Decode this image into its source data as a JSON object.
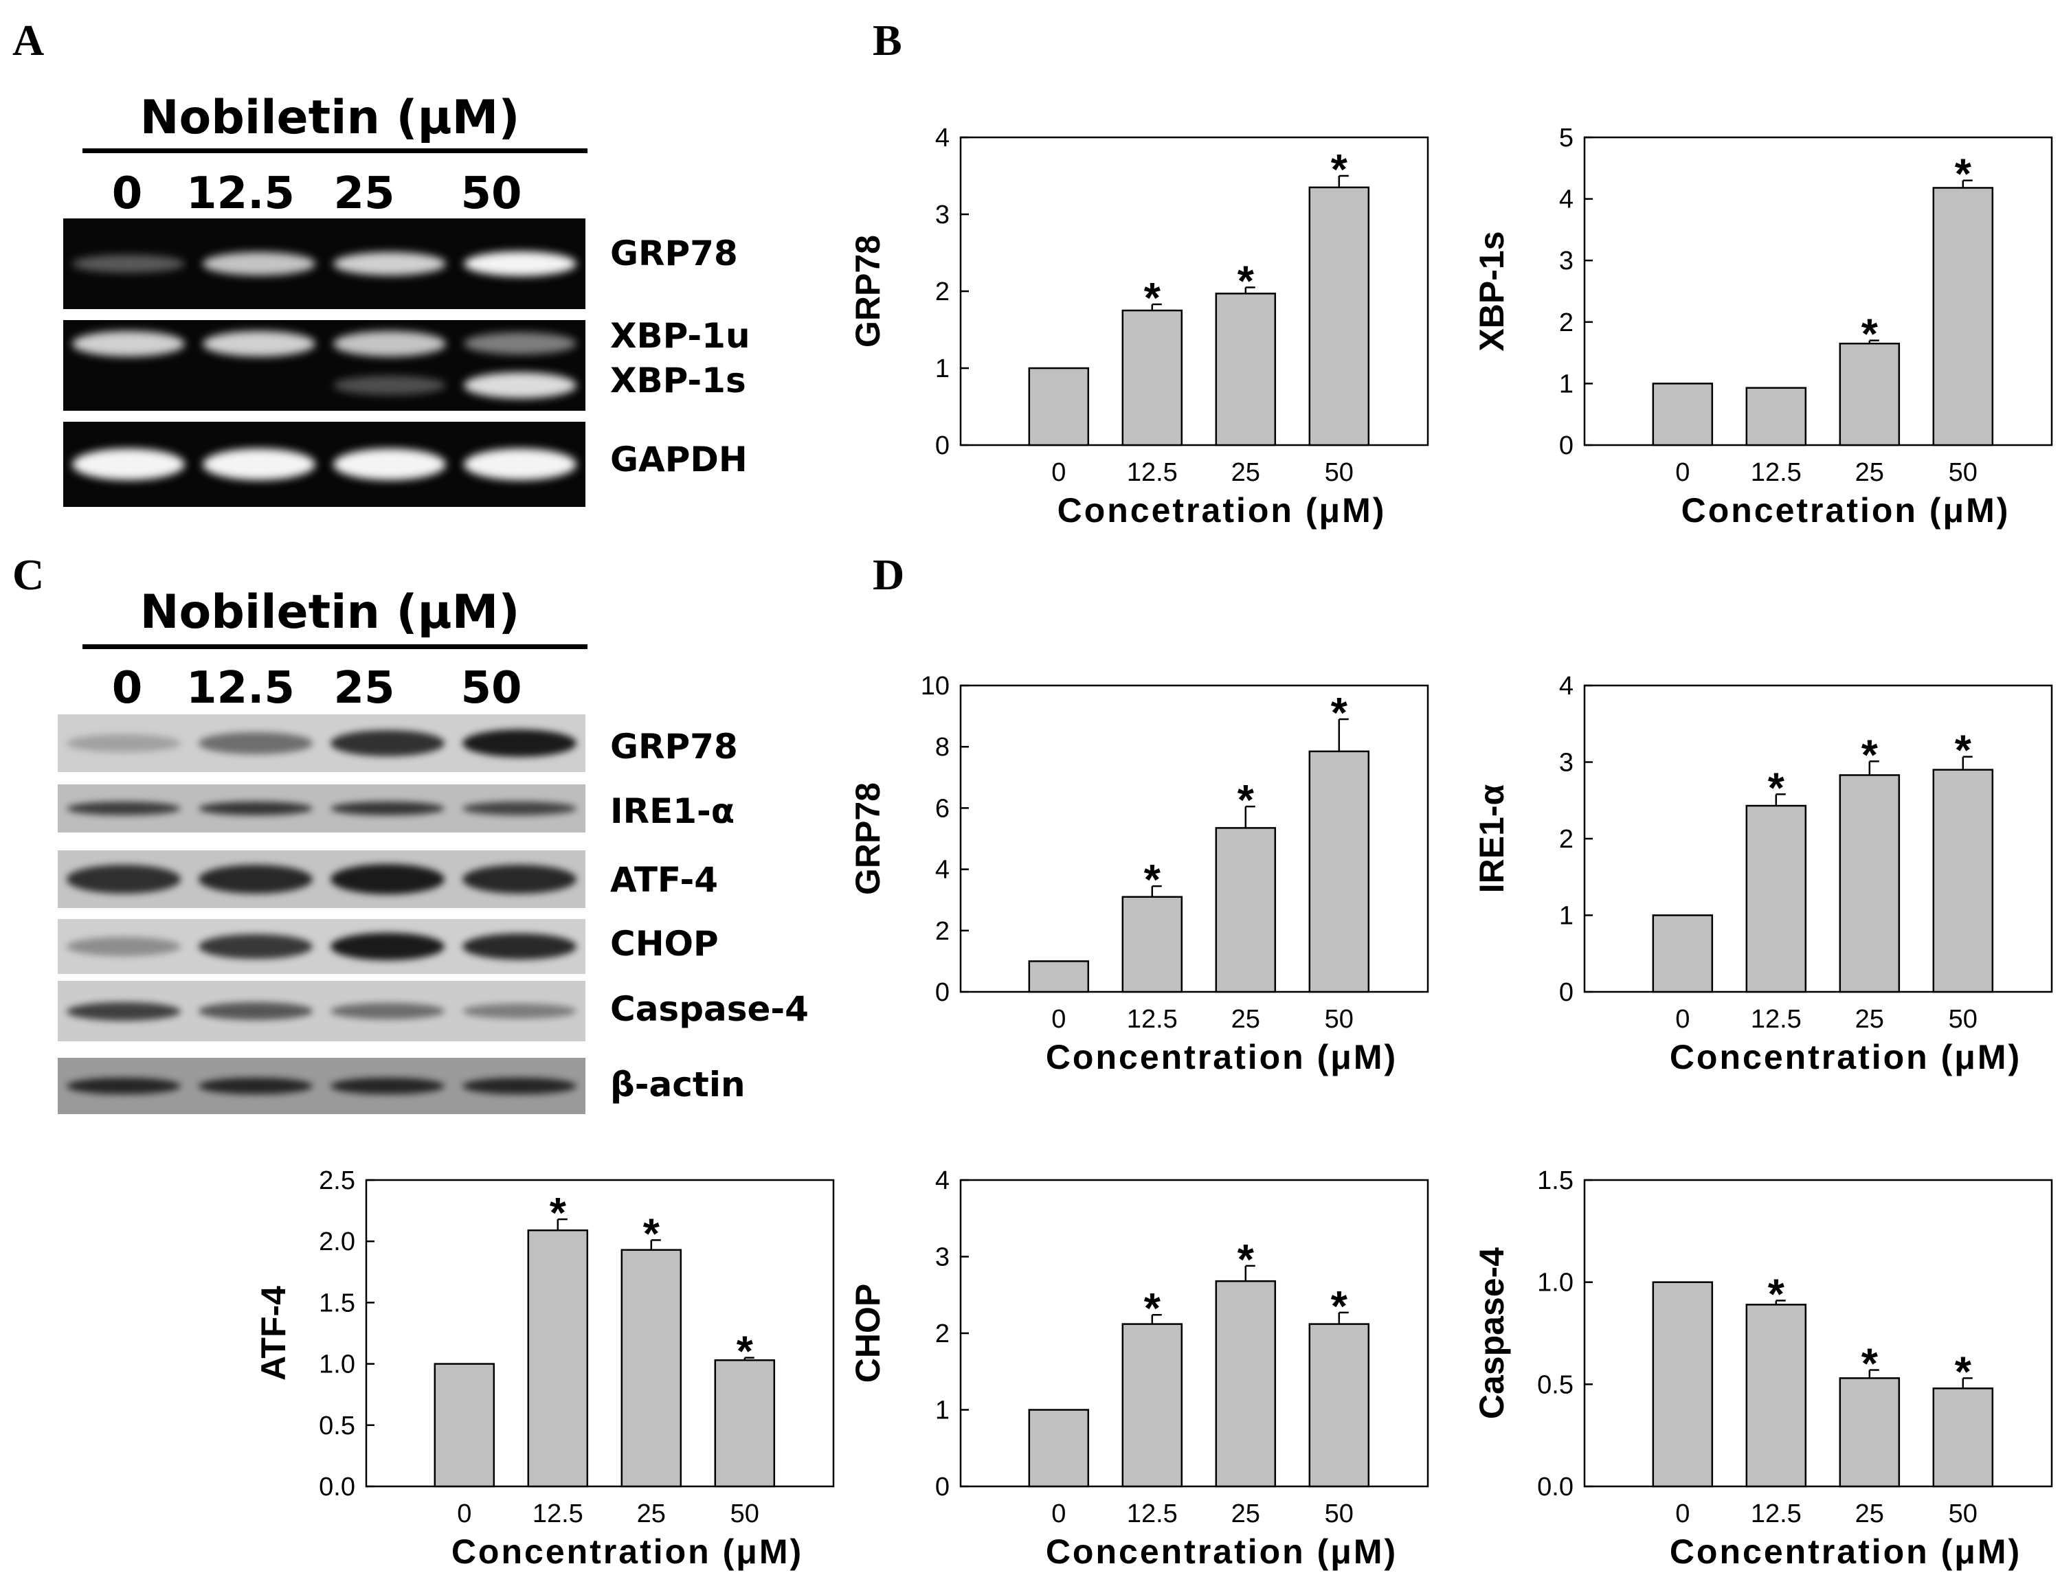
{
  "panels": {
    "a": {
      "letter": "A"
    },
    "b": {
      "letter": "B"
    },
    "c": {
      "letter": "C"
    },
    "d": {
      "letter": "D"
    }
  },
  "blot_a": {
    "title": "Nobiletin (μM)",
    "lanes": [
      "0",
      "12.5",
      "25",
      "50"
    ],
    "rows": [
      {
        "label": "GRP78",
        "intensities": [
          0.35,
          0.8,
          0.85,
          1.0
        ]
      },
      {
        "label": "XBP-1u",
        "intensities": [
          0.85,
          0.85,
          0.8,
          0.5
        ]
      },
      {
        "label": "XBP-1s",
        "intensities": [
          0.0,
          0.0,
          0.3,
          0.9
        ]
      },
      {
        "label": "GAPDH",
        "intensities": [
          1.0,
          1.0,
          1.0,
          1.0
        ]
      }
    ]
  },
  "blot_c": {
    "title": "Nobiletin (μM)",
    "lanes": [
      "0",
      "12.5",
      "25",
      "50"
    ],
    "rows": [
      {
        "label": "GRP78",
        "intensities": [
          0.12,
          0.45,
          0.85,
          1.0
        ]
      },
      {
        "label": "IRE1-α",
        "intensities": [
          0.75,
          0.8,
          0.8,
          0.7
        ]
      },
      {
        "label": "ATF-4",
        "intensities": [
          0.85,
          0.9,
          1.0,
          0.9
        ]
      },
      {
        "label": "CHOP",
        "intensities": [
          0.25,
          0.8,
          1.0,
          0.9
        ]
      },
      {
        "label": "Caspase-4",
        "intensities": [
          0.75,
          0.6,
          0.45,
          0.35
        ]
      },
      {
        "label": "β-actin",
        "intensities": [
          0.9,
          0.9,
          0.9,
          0.9
        ]
      }
    ]
  },
  "chart_data": [
    {
      "type": "bar",
      "panel": "B",
      "categories": [
        "0",
        "12.5",
        "25",
        "50"
      ],
      "values": [
        1.0,
        1.75,
        1.97,
        3.35
      ],
      "errors": [
        0,
        0.08,
        0.08,
        0.15
      ],
      "significant": [
        false,
        true,
        true,
        true
      ],
      "ylabel": "GRP78",
      "xlabel": "Concetration (μM)",
      "ylim": [
        0,
        4
      ],
      "yticks": [
        "0",
        "1",
        "2",
        "3",
        "4"
      ],
      "star": "*"
    },
    {
      "type": "bar",
      "panel": "B",
      "categories": [
        "0",
        "12.5",
        "25",
        "50"
      ],
      "values": [
        1.0,
        0.93,
        1.65,
        4.18
      ],
      "errors": [
        0,
        0,
        0.05,
        0.12
      ],
      "significant": [
        false,
        false,
        true,
        true
      ],
      "ylabel": "XBP-1s",
      "xlabel": "Concetration (μM)",
      "ylim": [
        0,
        5
      ],
      "yticks": [
        "0",
        "1",
        "2",
        "3",
        "4",
        "5"
      ],
      "star": "*"
    },
    {
      "type": "bar",
      "panel": "D",
      "categories": [
        "0",
        "12.5",
        "25",
        "50"
      ],
      "values": [
        1.0,
        3.1,
        5.35,
        7.85
      ],
      "errors": [
        0,
        0.35,
        0.7,
        1.05
      ],
      "significant": [
        false,
        true,
        true,
        true
      ],
      "ylabel": "GRP78",
      "xlabel": "Concentration (μM)",
      "ylim": [
        0,
        10
      ],
      "yticks": [
        "0",
        "2",
        "4",
        "6",
        "8",
        "10"
      ],
      "star": "*"
    },
    {
      "type": "bar",
      "panel": "D",
      "categories": [
        "0",
        "12.5",
        "25",
        "50"
      ],
      "values": [
        1.0,
        2.43,
        2.83,
        2.9
      ],
      "errors": [
        0,
        0.15,
        0.18,
        0.17
      ],
      "significant": [
        false,
        true,
        true,
        true
      ],
      "ylabel": "IRE1-α",
      "xlabel": "Concentration (μM)",
      "ylim": [
        0,
        4
      ],
      "yticks": [
        "0",
        "1",
        "2",
        "3",
        "4"
      ],
      "star": "*"
    },
    {
      "type": "bar",
      "panel": "D",
      "categories": [
        "0",
        "12.5",
        "25",
        "50"
      ],
      "values": [
        1.0,
        2.09,
        1.93,
        1.03
      ],
      "errors": [
        0,
        0.09,
        0.08,
        0.02
      ],
      "significant": [
        false,
        true,
        true,
        true
      ],
      "ylabel": "ATF-4",
      "xlabel": "Concentration (μM)",
      "ylim": [
        0,
        2.5
      ],
      "yticks": [
        "0.0",
        "0.5",
        "1.0",
        "1.5",
        "2.0",
        "2.5"
      ],
      "star": "*"
    },
    {
      "type": "bar",
      "panel": "D",
      "categories": [
        "0",
        "12.5",
        "25",
        "50"
      ],
      "values": [
        1.0,
        2.12,
        2.68,
        2.12
      ],
      "errors": [
        0,
        0.12,
        0.2,
        0.15
      ],
      "significant": [
        false,
        true,
        true,
        true
      ],
      "ylabel": "CHOP",
      "xlabel": "Concentration (μM)",
      "ylim": [
        0,
        4
      ],
      "yticks": [
        "0",
        "1",
        "2",
        "3",
        "4"
      ],
      "star": "*"
    },
    {
      "type": "bar",
      "panel": "D",
      "categories": [
        "0",
        "12.5",
        "25",
        "50"
      ],
      "values": [
        1.0,
        0.89,
        0.53,
        0.48
      ],
      "errors": [
        0,
        0.02,
        0.04,
        0.05
      ],
      "significant": [
        false,
        true,
        true,
        true
      ],
      "ylabel": "Caspase-4",
      "xlabel": "Concentration (μM)",
      "ylim": [
        0,
        1.5
      ],
      "yticks": [
        "0.0",
        "0.5",
        "1.0",
        "1.5"
      ],
      "star": "*"
    }
  ]
}
